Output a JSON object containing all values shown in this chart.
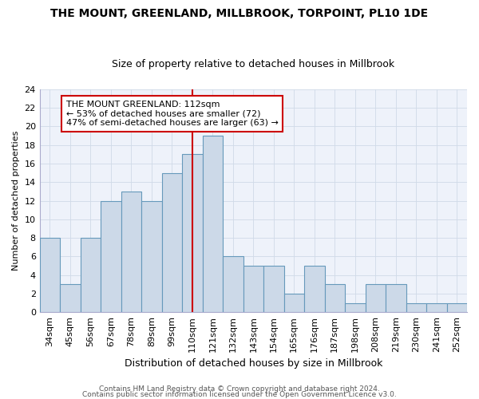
{
  "title1": "THE MOUNT, GREENLAND, MILLBROOK, TORPOINT, PL10 1DE",
  "title2": "Size of property relative to detached houses in Millbrook",
  "xlabel": "Distribution of detached houses by size in Millbrook",
  "ylabel": "Number of detached properties",
  "categories": [
    "34sqm",
    "45sqm",
    "56sqm",
    "67sqm",
    "78sqm",
    "89sqm",
    "99sqm",
    "110sqm",
    "121sqm",
    "132sqm",
    "143sqm",
    "154sqm",
    "165sqm",
    "176sqm",
    "187sqm",
    "198sqm",
    "208sqm",
    "219sqm",
    "230sqm",
    "241sqm",
    "252sqm"
  ],
  "values": [
    8,
    3,
    8,
    12,
    13,
    12,
    15,
    17,
    19,
    6,
    5,
    5,
    2,
    5,
    3,
    1,
    3,
    3,
    1,
    1,
    1
  ],
  "bar_color": "#ccd9e8",
  "bar_edge_color": "#6699bb",
  "vline_x_index": 7,
  "vline_color": "#cc0000",
  "annotation_text": "THE MOUNT GREENLAND: 112sqm\n← 53% of detached houses are smaller (72)\n47% of semi-detached houses are larger (63) →",
  "annotation_box_color": "#ffffff",
  "annotation_box_edge_color": "#cc0000",
  "ylim": [
    0,
    24
  ],
  "yticks": [
    0,
    2,
    4,
    6,
    8,
    10,
    12,
    14,
    16,
    18,
    20,
    22,
    24
  ],
  "footer1": "Contains HM Land Registry data © Crown copyright and database right 2024.",
  "footer2": "Contains public sector information licensed under the Open Government Licence v3.0.",
  "grid_color": "#d0dae8",
  "background_color": "#eef2fa",
  "bar_width": 1.0,
  "title1_fontsize": 10,
  "title2_fontsize": 9,
  "xlabel_fontsize": 9,
  "ylabel_fontsize": 8,
  "tick_fontsize": 8,
  "annot_fontsize": 8,
  "footer_fontsize": 6.5
}
